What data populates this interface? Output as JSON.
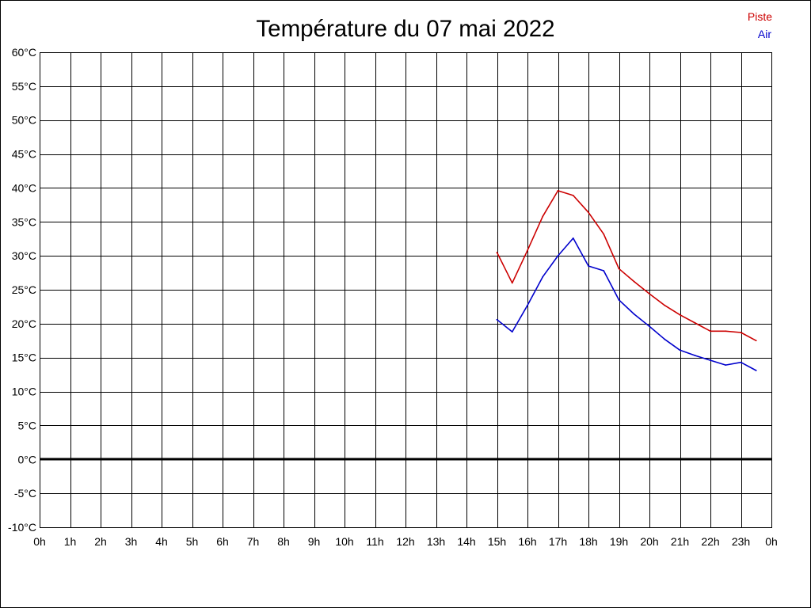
{
  "chart_data": {
    "type": "line",
    "title": "Température du 07 mai 2022",
    "xlabel": "",
    "ylabel": "",
    "xlim": [
      0,
      24
    ],
    "ylim": [
      -10,
      60
    ],
    "xtick_labels": [
      "0h",
      "1h",
      "2h",
      "3h",
      "4h",
      "5h",
      "6h",
      "7h",
      "8h",
      "9h",
      "10h",
      "11h",
      "12h",
      "13h",
      "14h",
      "15h",
      "16h",
      "17h",
      "18h",
      "19h",
      "20h",
      "21h",
      "22h",
      "23h",
      "0h"
    ],
    "ytick_labels": [
      "-10°C",
      "-5°C",
      "0°C",
      "5°C",
      "10°C",
      "15°C",
      "20°C",
      "25°C",
      "30°C",
      "35°C",
      "40°C",
      "45°C",
      "50°C",
      "55°C",
      "60°C"
    ],
    "grid": true,
    "zero_line": true,
    "legend": {
      "placement": "top-right"
    },
    "x": [
      15,
      15.5,
      16,
      16.5,
      17,
      17.5,
      18,
      18.5,
      19,
      19.5,
      20,
      20.5,
      21,
      21.5,
      22,
      22.5,
      23,
      23.5
    ],
    "series": [
      {
        "name": "Piste",
        "color": "#cc0000",
        "values": [
          30.5,
          26.0,
          30.8,
          35.8,
          39.6,
          38.9,
          36.4,
          33.2,
          28.1,
          26.2,
          24.4,
          22.7,
          21.3,
          20.1,
          18.9,
          18.9,
          18.7,
          17.5
        ]
      },
      {
        "name": "Air",
        "color": "#0000cc",
        "values": [
          20.6,
          18.8,
          22.7,
          26.9,
          30.0,
          32.6,
          28.5,
          27.8,
          23.5,
          21.4,
          19.6,
          17.7,
          16.1,
          15.3,
          14.6,
          13.9,
          14.3,
          13.1
        ]
      }
    ]
  }
}
